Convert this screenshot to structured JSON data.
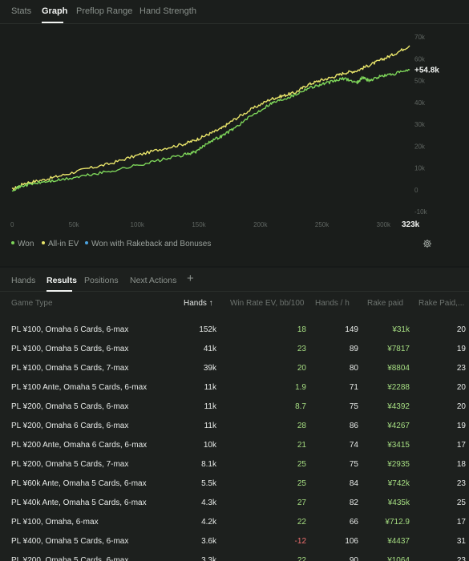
{
  "top_tabs": [
    {
      "label": "Stats",
      "active": false
    },
    {
      "label": "Graph",
      "active": true
    },
    {
      "label": "Preflop Range",
      "active": false
    },
    {
      "label": "Hand Strength",
      "active": false
    }
  ],
  "chart_data": {
    "type": "line",
    "x_ticks": [
      "0",
      "50k",
      "100k",
      "150k",
      "200k",
      "250k",
      "300k"
    ],
    "x_end_label": "323k",
    "x_range": [
      0,
      323000
    ],
    "y_ticks": [
      "70k",
      "60k",
      "50k",
      "40k",
      "30k",
      "20k",
      "10k",
      "0",
      "-10k"
    ],
    "y_range": [
      -10000,
      70000
    ],
    "end_value_label": "+54.8k",
    "series": [
      {
        "name": "Won",
        "color": "#7ed65a",
        "x": [
          0,
          10000,
          25000,
          40000,
          60000,
          80000,
          100000,
          120000,
          140000,
          150000,
          160000,
          170000,
          180000,
          195000,
          210000,
          220000,
          230000,
          240000,
          250000,
          260000,
          270000,
          280000,
          285000,
          290000,
          300000,
          310000,
          323000
        ],
        "y": [
          0,
          2000,
          3500,
          4500,
          6500,
          8500,
          11000,
          13500,
          16000,
          17500,
          22000,
          24500,
          28000,
          34000,
          39500,
          41500,
          43500,
          46500,
          48000,
          49500,
          51000,
          49000,
          51500,
          50000,
          52000,
          53000,
          54800
        ]
      },
      {
        "name": "All-in EV",
        "color": "#e8e46a",
        "x": [
          0,
          10000,
          25000,
          40000,
          60000,
          80000,
          100000,
          120000,
          140000,
          150000,
          160000,
          170000,
          180000,
          195000,
          210000,
          220000,
          230000,
          240000,
          250000,
          260000,
          270000,
          280000,
          290000,
          300000,
          310000,
          323000
        ],
        "y": [
          0,
          3000,
          4500,
          6500,
          9500,
          12000,
          15500,
          18500,
          21000,
          23000,
          25500,
          28000,
          32000,
          37000,
          41500,
          43000,
          44500,
          48000,
          50000,
          51500,
          53500,
          54500,
          57000,
          59500,
          62000,
          66000
        ]
      }
    ],
    "legend_placement": "bottom-left",
    "grid": false
  },
  "legend": [
    {
      "label": "Won",
      "color": "#7ed65a"
    },
    {
      "label": "All-in EV",
      "color": "#e8e46a"
    },
    {
      "label": "Won with Rakeback and Bonuses",
      "color": "#4ba3e0"
    }
  ],
  "sub_tabs": [
    {
      "label": "Hands",
      "active": false
    },
    {
      "label": "Results",
      "active": true
    },
    {
      "label": "Positions",
      "active": false
    },
    {
      "label": "Next Actions",
      "active": false
    }
  ],
  "add_tab_glyph": "+",
  "columns": [
    "Game Type",
    "Hands ↑",
    "Win Rate EV, bb/100",
    "Hands / h",
    "Rake paid",
    "Rake Paid,..."
  ],
  "rows": [
    {
      "game": "PL ¥100, Omaha 6 Cards, 6-max",
      "hands": "152k",
      "winrate": "18",
      "hph": "149",
      "rake": "¥31k",
      "rake_pct": "20"
    },
    {
      "game": "PL ¥100, Omaha 5 Cards, 6-max",
      "hands": "41k",
      "winrate": "23",
      "hph": "89",
      "rake": "¥7817",
      "rake_pct": "19"
    },
    {
      "game": "PL ¥100, Omaha 5 Cards, 7-max",
      "hands": "39k",
      "winrate": "20",
      "hph": "80",
      "rake": "¥8804",
      "rake_pct": "23"
    },
    {
      "game": "PL ¥100 Ante, Omaha 5 Cards, 6-max",
      "hands": "11k",
      "winrate": "1.9",
      "hph": "71",
      "rake": "¥2288",
      "rake_pct": "20"
    },
    {
      "game": "PL ¥200, Omaha 5 Cards, 6-max",
      "hands": "11k",
      "winrate": "8.7",
      "hph": "75",
      "rake": "¥4392",
      "rake_pct": "20"
    },
    {
      "game": "PL ¥200, Omaha 6 Cards, 6-max",
      "hands": "11k",
      "winrate": "28",
      "hph": "86",
      "rake": "¥4267",
      "rake_pct": "19"
    },
    {
      "game": "PL ¥200 Ante, Omaha 6 Cards, 6-max",
      "hands": "10k",
      "winrate": "21",
      "hph": "74",
      "rake": "¥3415",
      "rake_pct": "17"
    },
    {
      "game": "PL ¥200, Omaha 5 Cards, 7-max",
      "hands": "8.1k",
      "winrate": "25",
      "hph": "75",
      "rake": "¥2935",
      "rake_pct": "18"
    },
    {
      "game": "PL ¥60k Ante, Omaha 5 Cards, 6-max",
      "hands": "5.5k",
      "winrate": "25",
      "hph": "84",
      "rake": "¥742k",
      "rake_pct": "23"
    },
    {
      "game": "PL ¥40k Ante, Omaha 5 Cards, 6-max",
      "hands": "4.3k",
      "winrate": "27",
      "hph": "82",
      "rake": "¥435k",
      "rake_pct": "25"
    },
    {
      "game": "PL ¥100, Omaha, 6-max",
      "hands": "4.2k",
      "winrate": "22",
      "hph": "66",
      "rake": "¥712.9",
      "rake_pct": "17"
    },
    {
      "game": "PL ¥400, Omaha 5 Cards, 6-max",
      "hands": "3.6k",
      "winrate": "-12",
      "hph": "106",
      "rake": "¥4437",
      "rake_pct": "31"
    },
    {
      "game": "PL ¥200, Omaha 5 Cards, 6-max",
      "hands": "3.3k",
      "winrate": "22",
      "hph": "90",
      "rake": "¥1064",
      "rake_pct": "23"
    }
  ]
}
